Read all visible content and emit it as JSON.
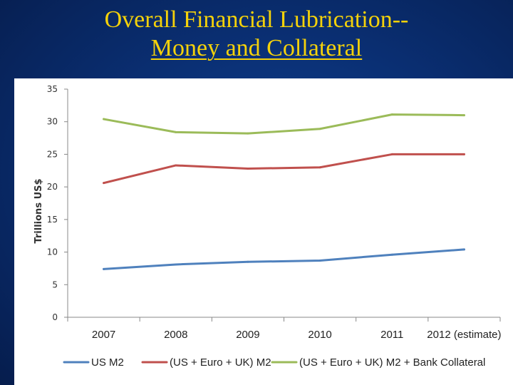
{
  "slide": {
    "title_line1": "Overall Financial Lubrication--",
    "title_line2": "Money and Collateral"
  },
  "chart_data": {
    "type": "line",
    "title": "",
    "xlabel": "",
    "ylabel": "Trillions US$",
    "ylim": [
      0,
      35
    ],
    "yticks": [
      0,
      5,
      10,
      15,
      20,
      25,
      30,
      35
    ],
    "categories": [
      "2007",
      "2008",
      "2009",
      "2010",
      "2011",
      "2012 (estimate)"
    ],
    "grid": false,
    "legend_position": "bottom",
    "series": [
      {
        "name": "US M2",
        "color": "#4f81bd",
        "values": [
          7.4,
          8.1,
          8.5,
          8.7,
          9.6,
          10.4
        ]
      },
      {
        "name": "(US + Euro + UK) M2",
        "color": "#c0504d",
        "values": [
          20.6,
          23.3,
          22.8,
          23.0,
          25.0,
          25.0
        ]
      },
      {
        "name": "(US + Euro + UK) M2 + Bank Collateral",
        "color": "#9bbb59",
        "values": [
          30.4,
          28.4,
          28.2,
          28.9,
          31.1,
          31.0
        ]
      }
    ]
  }
}
